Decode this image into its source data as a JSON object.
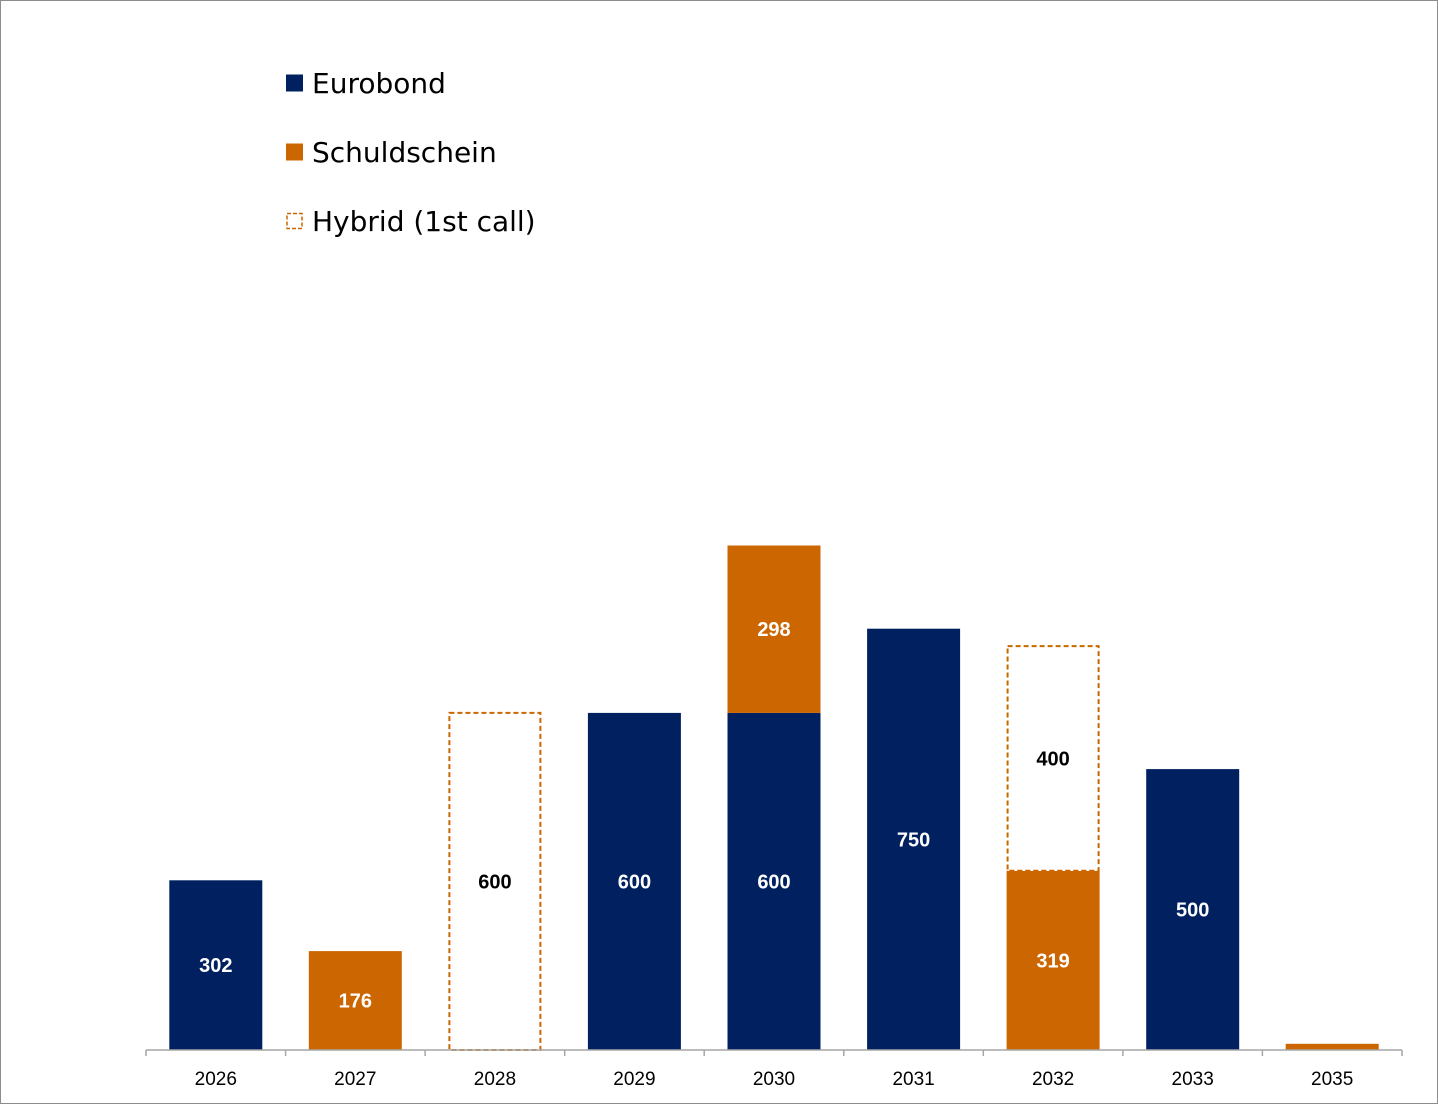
{
  "chart_data": {
    "type": "bar",
    "stacked": true,
    "title": "",
    "xlabel": "",
    "ylabel": "",
    "ylim": [
      0,
      900
    ],
    "grid": false,
    "legend_position": "top-left",
    "categories": [
      "2026",
      "2027",
      "2028",
      "2029",
      "2030",
      "2031",
      "2032",
      "2033",
      "2035"
    ],
    "series": [
      {
        "name": "Eurobond",
        "style": "solid",
        "color": "#002060",
        "label_color": "#ffffff",
        "values": [
          302,
          0,
          0,
          600,
          600,
          750,
          0,
          500,
          0
        ]
      },
      {
        "name": "Schuldschein",
        "style": "solid",
        "color": "#CC6600",
        "label_color": "#ffffff",
        "values": [
          0,
          176,
          0,
          0,
          298,
          0,
          319,
          0,
          11
        ]
      },
      {
        "name": "Hybrid (1st call)",
        "style": "dashed-outline",
        "color": "#CC6600",
        "label_color": "#000000",
        "values": [
          0,
          0,
          600,
          0,
          0,
          0,
          400,
          0,
          0
        ]
      }
    ],
    "data_labels": [
      {
        "category": "2026",
        "series": "Eurobond",
        "text": "302"
      },
      {
        "category": "2027",
        "series": "Schuldschein",
        "text": "176"
      },
      {
        "category": "2028",
        "series": "Hybrid (1st call)",
        "text": "600"
      },
      {
        "category": "2029",
        "series": "Eurobond",
        "text": "600"
      },
      {
        "category": "2030",
        "series": "Eurobond",
        "text": "600"
      },
      {
        "category": "2030",
        "series": "Schuldschein",
        "text": "298"
      },
      {
        "category": "2031",
        "series": "Eurobond",
        "text": "750"
      },
      {
        "category": "2032",
        "series": "Schuldschein",
        "text": "319"
      },
      {
        "category": "2032",
        "series": "Hybrid (1st call)",
        "text": "400"
      },
      {
        "category": "2033",
        "series": "Eurobond",
        "text": "500"
      }
    ]
  },
  "legend": {
    "items": [
      {
        "label": "Eurobond",
        "icon": "solid-square",
        "color": "#002060"
      },
      {
        "label": "Schuldschein",
        "icon": "solid-square",
        "color": "#CC6600"
      },
      {
        "label": "Hybrid (1st call)",
        "icon": "dashed-square",
        "color": "#CC6600"
      }
    ]
  },
  "axis": {
    "color": "#a6a6a6"
  }
}
